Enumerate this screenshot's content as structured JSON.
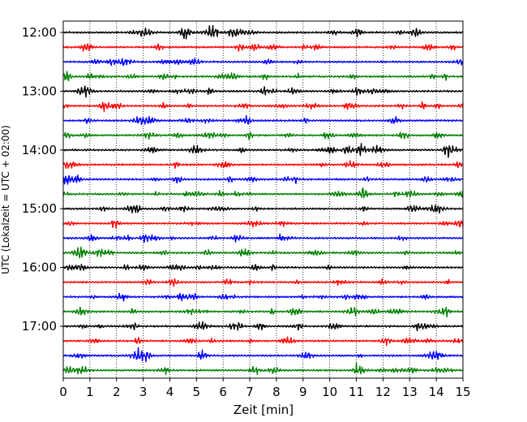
{
  "chart_data": {
    "type": "line",
    "title": "",
    "xlabel": "Zeit  [min]",
    "ylabel": "UTC (Lokalzeit = UTC + 02:00)",
    "xlim": [
      0,
      15
    ],
    "x_ticks": [
      0,
      1,
      2,
      3,
      4,
      5,
      6,
      7,
      8,
      9,
      10,
      11,
      12,
      13,
      14,
      15
    ],
    "x_tick_labels": [
      "0",
      "1",
      "2",
      "3",
      "4",
      "5",
      "6",
      "7",
      "8",
      "9",
      "10",
      "11",
      "12",
      "13",
      "14",
      "15"
    ],
    "y_tick_labels": [
      "12:00",
      "13:00",
      "14:00",
      "15:00",
      "16:00",
      "17:00"
    ],
    "vertical_grid": "dotted",
    "trace_minutes": 15,
    "traces_per_hour": 4,
    "traces": [
      {
        "start": "12:00",
        "color": "#000000"
      },
      {
        "start": "12:15",
        "color": "#ff0000"
      },
      {
        "start": "12:30",
        "color": "#0000ff"
      },
      {
        "start": "12:45",
        "color": "#008000"
      },
      {
        "start": "13:00",
        "color": "#000000"
      },
      {
        "start": "13:15",
        "color": "#ff0000"
      },
      {
        "start": "13:30",
        "color": "#0000ff"
      },
      {
        "start": "13:45",
        "color": "#008000"
      },
      {
        "start": "14:00",
        "color": "#000000"
      },
      {
        "start": "14:15",
        "color": "#ff0000"
      },
      {
        "start": "14:30",
        "color": "#0000ff"
      },
      {
        "start": "14:45",
        "color": "#008000"
      },
      {
        "start": "15:00",
        "color": "#000000"
      },
      {
        "start": "15:15",
        "color": "#ff0000"
      },
      {
        "start": "15:30",
        "color": "#0000ff"
      },
      {
        "start": "15:45",
        "color": "#008000"
      },
      {
        "start": "16:00",
        "color": "#000000"
      },
      {
        "start": "16:15",
        "color": "#ff0000"
      },
      {
        "start": "16:30",
        "color": "#0000ff"
      },
      {
        "start": "16:45",
        "color": "#008000"
      },
      {
        "start": "17:00",
        "color": "#000000"
      },
      {
        "start": "17:15",
        "color": "#ff0000"
      },
      {
        "start": "17:30",
        "color": "#0000ff"
      },
      {
        "start": "17:45",
        "color": "#008000"
      }
    ]
  }
}
